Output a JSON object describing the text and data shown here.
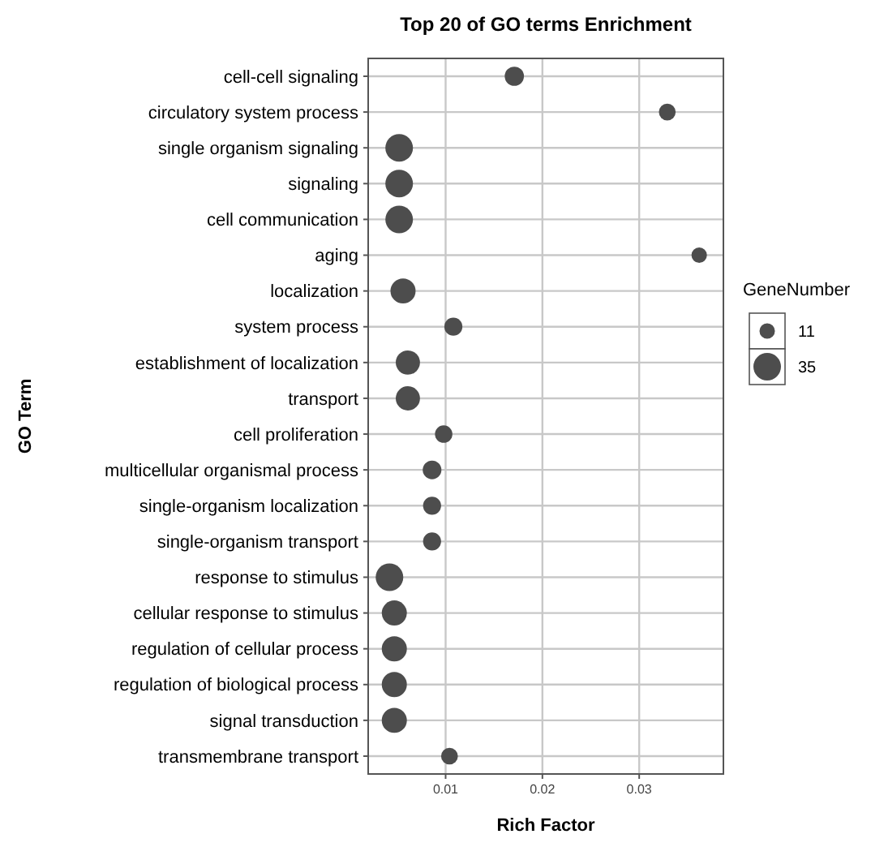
{
  "chart_data": {
    "type": "bubble",
    "title": "Top 20 of GO terms Enrichment",
    "xlabel": "Rich Factor",
    "ylabel": "GO Term",
    "legend_title": "GeneNumber",
    "categories": [
      "cell-cell signaling",
      "circulatory system process",
      "single organism signaling",
      "signaling",
      "cell communication",
      "aging",
      "localization",
      "system process",
      "establishment of localization",
      "transport",
      "cell proliferation",
      "multicellular organismal process",
      "single-organism localization",
      "single-organism transport",
      "response to stimulus",
      "cellular response to stimulus",
      "regulation of cellular process",
      "regulation of biological process",
      "signal transduction",
      "transmembrane transport"
    ],
    "series": [
      {
        "color": "#4d4d4d",
        "values": [
          0.0171,
          0.0329,
          0.0052,
          0.0052,
          0.0052,
          0.0362,
          0.0056,
          0.0108,
          0.0061,
          0.0061,
          0.0098,
          0.0086,
          0.0086,
          0.0086,
          0.0042,
          0.0047,
          0.0047,
          0.0047,
          0.0047,
          0.0104
        ],
        "sizes": [
          17,
          13,
          35,
          35,
          35,
          11,
          29,
          15,
          27,
          27,
          14,
          16,
          15,
          15,
          35,
          29,
          29,
          29,
          29,
          13
        ]
      }
    ],
    "size_legend": [
      11,
      35
    ],
    "orientation": "horizontal",
    "xlim": [
      0.002,
      0.0387
    ],
    "xticks": [
      0.01,
      0.02,
      0.03
    ],
    "grid": true,
    "marker": "circle"
  }
}
